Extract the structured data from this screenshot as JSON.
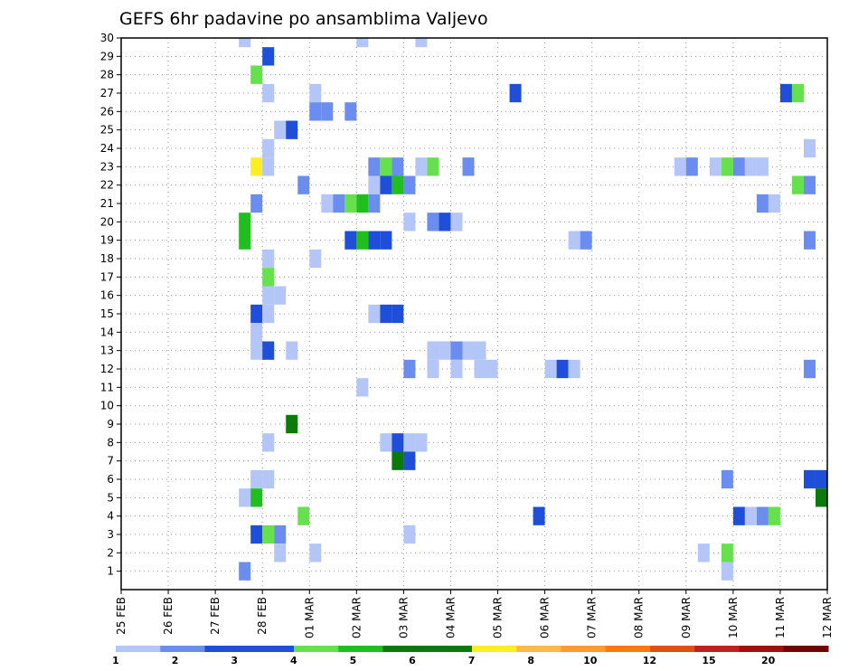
{
  "chart_data": {
    "type": "heatmap",
    "title": "GEFS 6hr padavine po ansamblima Valjevo",
    "x_labels": [
      "25 FEB",
      "26 FEB",
      "27 FEB",
      "28 FEB",
      "01 MAR",
      "02 MAR",
      "03 MAR",
      "04 MAR",
      "05 MAR",
      "06 MAR",
      "07 MAR",
      "08 MAR",
      "09 MAR",
      "10 MAR",
      "11 MAR",
      "12 MAR"
    ],
    "y_labels": [
      "1",
      "2",
      "3",
      "4",
      "5",
      "6",
      "7",
      "8",
      "9",
      "10",
      "11",
      "12",
      "13",
      "14",
      "15",
      "16",
      "17",
      "18",
      "19",
      "20",
      "21",
      "22",
      "23",
      "24",
      "25",
      "26",
      "27",
      "28",
      "29",
      "30"
    ],
    "x_range": [
      0,
      60
    ],
    "y_range": [
      0,
      30
    ],
    "grid": true,
    "colorbar": {
      "ticks": [
        "1",
        "2",
        "3",
        "4",
        "5",
        "6",
        "7",
        "8",
        "10",
        "12",
        "15",
        "20"
      ],
      "colors": [
        "#b3c6f7",
        "#6b8df0",
        "#1f4fd8",
        "#1f4fd8",
        "#66e04d",
        "#1fbf1f",
        "#0a7a0a",
        "#0a7a0a",
        "#ffee22",
        "#ffb84d",
        "#ff9933",
        "#ff7711",
        "#e05010",
        "#c02020",
        "#a01010",
        "#700505"
      ]
    },
    "colors": {
      "1": "#b3c6f7",
      "2": "#6b8df0",
      "3": "#1f4fd8",
      "4": "#66e04d",
      "5": "#1fbf1f",
      "6": "#0a7a0a",
      "7": "#ffee22"
    },
    "cells": [
      [
        10.5,
        30,
        1
      ],
      [
        20.5,
        30,
        1
      ],
      [
        25.5,
        30,
        1
      ],
      [
        12.5,
        29,
        3
      ],
      [
        11.5,
        28,
        4
      ],
      [
        12.5,
        27,
        1
      ],
      [
        16.5,
        27,
        1
      ],
      [
        33.5,
        27,
        3
      ],
      [
        56.5,
        27,
        3
      ],
      [
        57.5,
        27,
        4
      ],
      [
        16.5,
        26,
        2
      ],
      [
        17.5,
        26,
        2
      ],
      [
        19.5,
        26,
        2
      ],
      [
        13.5,
        25,
        1
      ],
      [
        14.5,
        25,
        3
      ],
      [
        12.5,
        24,
        1
      ],
      [
        58.5,
        24,
        1
      ],
      [
        11.5,
        23,
        7
      ],
      [
        12.5,
        23,
        1
      ],
      [
        21.5,
        23,
        2
      ],
      [
        22.5,
        23,
        4
      ],
      [
        23.5,
        23,
        2
      ],
      [
        25.5,
        23,
        1
      ],
      [
        26.5,
        23,
        4
      ],
      [
        29.5,
        23,
        2
      ],
      [
        47.5,
        23,
        1
      ],
      [
        48.5,
        23,
        2
      ],
      [
        50.5,
        23,
        1
      ],
      [
        51.5,
        23,
        4
      ],
      [
        52.5,
        23,
        2
      ],
      [
        53.5,
        23,
        1
      ],
      [
        54.5,
        23,
        1
      ],
      [
        15.5,
        22,
        2
      ],
      [
        21.5,
        22,
        1
      ],
      [
        22.5,
        22,
        3
      ],
      [
        23.5,
        22,
        5
      ],
      [
        24.5,
        22,
        2
      ],
      [
        57.5,
        22,
        4
      ],
      [
        58.5,
        22,
        2
      ],
      [
        11.5,
        21,
        2
      ],
      [
        17.5,
        21,
        1
      ],
      [
        18.5,
        21,
        2
      ],
      [
        19.5,
        21,
        4
      ],
      [
        20.5,
        21,
        5
      ],
      [
        21.5,
        21,
        2
      ],
      [
        54.5,
        21,
        2
      ],
      [
        55.5,
        21,
        1
      ],
      [
        10.5,
        20,
        5
      ],
      [
        24.5,
        20,
        1
      ],
      [
        26.5,
        20,
        2
      ],
      [
        27.5,
        20,
        3
      ],
      [
        28.5,
        20,
        1
      ],
      [
        10.5,
        19,
        5
      ],
      [
        19.5,
        19,
        3
      ],
      [
        20.5,
        19,
        5
      ],
      [
        21.5,
        19,
        3
      ],
      [
        22.5,
        19,
        3
      ],
      [
        38.5,
        19,
        1
      ],
      [
        39.5,
        19,
        2
      ],
      [
        58.5,
        19,
        2
      ],
      [
        12.5,
        18,
        1
      ],
      [
        16.5,
        18,
        1
      ],
      [
        12.5,
        17,
        4
      ],
      [
        12.5,
        16,
        1
      ],
      [
        13.5,
        16,
        1
      ],
      [
        11.5,
        15,
        3
      ],
      [
        12.5,
        15,
        1
      ],
      [
        21.5,
        15,
        1
      ],
      [
        22.5,
        15,
        3
      ],
      [
        23.5,
        15,
        3
      ],
      [
        11.5,
        14,
        1
      ],
      [
        11.5,
        13,
        1
      ],
      [
        12.5,
        13,
        3
      ],
      [
        14.5,
        13,
        1
      ],
      [
        26.5,
        13,
        1
      ],
      [
        27.5,
        13,
        1
      ],
      [
        28.5,
        13,
        2
      ],
      [
        29.5,
        13,
        1
      ],
      [
        30.5,
        13,
        1
      ],
      [
        24.5,
        12,
        2
      ],
      [
        26.5,
        12,
        1
      ],
      [
        28.5,
        12,
        1
      ],
      [
        30.5,
        12,
        1
      ],
      [
        31.5,
        12,
        1
      ],
      [
        36.5,
        12,
        1
      ],
      [
        37.5,
        12,
        3
      ],
      [
        38.5,
        12,
        1
      ],
      [
        58.5,
        12,
        2
      ],
      [
        20.5,
        11,
        1
      ],
      [
        14.5,
        9,
        6
      ],
      [
        12.5,
        8,
        1
      ],
      [
        22.5,
        8,
        1
      ],
      [
        23.5,
        8,
        3
      ],
      [
        24.5,
        8,
        1
      ],
      [
        25.5,
        8,
        1
      ],
      [
        23.5,
        7,
        6
      ],
      [
        24.5,
        7,
        3
      ],
      [
        11.5,
        6,
        1
      ],
      [
        12.5,
        6,
        1
      ],
      [
        51.5,
        6,
        2
      ],
      [
        58.5,
        6,
        3
      ],
      [
        59.5,
        6,
        3
      ],
      [
        10.5,
        5,
        1
      ],
      [
        11.5,
        5,
        5
      ],
      [
        59.5,
        5,
        6
      ],
      [
        15.5,
        4,
        4
      ],
      [
        35.5,
        4,
        3
      ],
      [
        52.5,
        4,
        3
      ],
      [
        53.5,
        4,
        1
      ],
      [
        54.5,
        4,
        2
      ],
      [
        55.5,
        4,
        4
      ],
      [
        11.5,
        3,
        3
      ],
      [
        12.5,
        3,
        4
      ],
      [
        13.5,
        3,
        2
      ],
      [
        24.5,
        3,
        1
      ],
      [
        13.5,
        2,
        1
      ],
      [
        16.5,
        2,
        1
      ],
      [
        49.5,
        2,
        1
      ],
      [
        51.5,
        2,
        4
      ],
      [
        10.5,
        1,
        2
      ],
      [
        51.5,
        1,
        1
      ]
    ]
  }
}
